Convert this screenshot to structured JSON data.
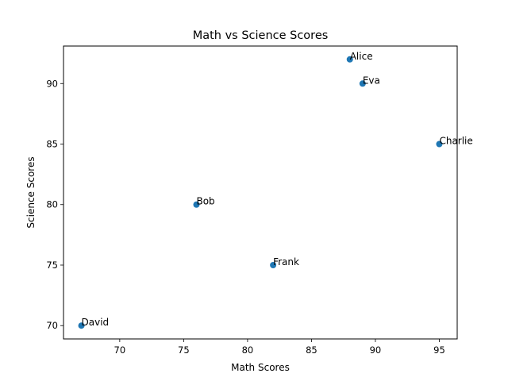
{
  "chart_data": {
    "type": "scatter",
    "title": "Math vs Science Scores",
    "xlabel": "Math Scores",
    "ylabel": "Science Scores",
    "xlim": [
      65.6,
      96.4
    ],
    "ylim": [
      68.9,
      93.1
    ],
    "xticks": [
      70,
      75,
      80,
      85,
      90,
      95
    ],
    "yticks": [
      70,
      75,
      80,
      85,
      90
    ],
    "grid": false,
    "point_color": "#1f77b4",
    "points": [
      {
        "label": "Alice",
        "x": 88,
        "y": 92
      },
      {
        "label": "Bob",
        "x": 76,
        "y": 80
      },
      {
        "label": "Charlie",
        "x": 95,
        "y": 85
      },
      {
        "label": "David",
        "x": 67,
        "y": 70
      },
      {
        "label": "Eva",
        "x": 89,
        "y": 90
      },
      {
        "label": "Frank",
        "x": 82,
        "y": 75
      }
    ]
  }
}
